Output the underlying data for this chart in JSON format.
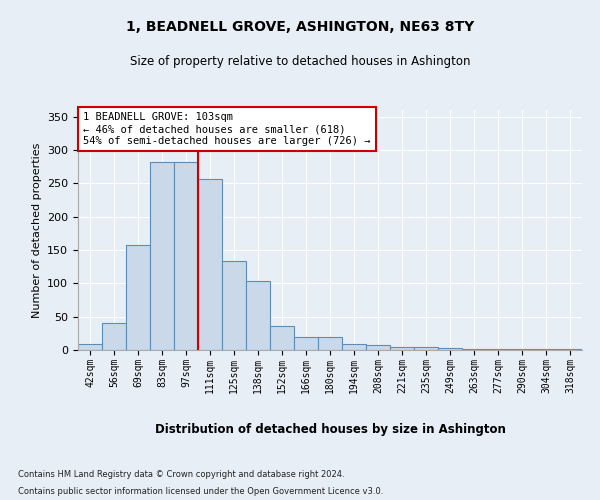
{
  "title": "1, BEADNELL GROVE, ASHINGTON, NE63 8TY",
  "subtitle": "Size of property relative to detached houses in Ashington",
  "xlabel": "Distribution of detached houses by size in Ashington",
  "ylabel": "Number of detached properties",
  "bar_labels": [
    "42sqm",
    "56sqm",
    "69sqm",
    "83sqm",
    "97sqm",
    "111sqm",
    "125sqm",
    "138sqm",
    "152sqm",
    "166sqm",
    "180sqm",
    "194sqm",
    "208sqm",
    "221sqm",
    "235sqm",
    "249sqm",
    "263sqm",
    "277sqm",
    "290sqm",
    "304sqm",
    "318sqm"
  ],
  "bar_values": [
    9,
    41,
    158,
    282,
    282,
    256,
    133,
    103,
    36,
    19,
    20,
    9,
    7,
    5,
    4,
    3,
    2,
    2,
    1,
    2,
    2
  ],
  "bar_color": "#c9d9ea",
  "bar_edge_color": "#5b8db8",
  "property_line_x": 4.5,
  "property_line_color": "#cc0000",
  "annotation_text": "1 BEADNELL GROVE: 103sqm\n← 46% of detached houses are smaller (618)\n54% of semi-detached houses are larger (726) →",
  "annotation_box_color": "#cc0000",
  "annotation_fill": "#ffffff",
  "ylim": [
    0,
    360
  ],
  "yticks": [
    0,
    50,
    100,
    150,
    200,
    250,
    300,
    350
  ],
  "footer_line1": "Contains HM Land Registry data © Crown copyright and database right 2024.",
  "footer_line2": "Contains public sector information licensed under the Open Government Licence v3.0.",
  "background_color": "#e8eef5",
  "plot_bg_color": "#e8eef5"
}
